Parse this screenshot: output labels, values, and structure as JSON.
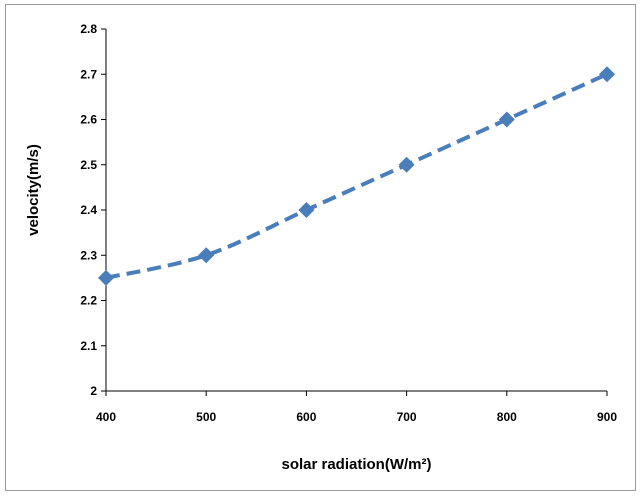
{
  "chart_data": {
    "type": "line",
    "title": "",
    "xlabel": "solar  radiation(W/m²)",
    "ylabel": "velocity(m/s)",
    "x": [
      400,
      500,
      600,
      700,
      800,
      900
    ],
    "series": [
      {
        "values": [
          2.25,
          2.3,
          2.4,
          2.5,
          2.6,
          2.7
        ]
      }
    ],
    "xlim": [
      400,
      900
    ],
    "ylim": [
      2,
      2.8
    ],
    "xticks": [
      "400",
      "500",
      "600",
      "700",
      "800",
      "900"
    ],
    "yticks": [
      "2",
      "2.1",
      "2.2",
      "2.3",
      "2.4",
      "2.5",
      "2.6",
      "2.7",
      "2.8"
    ],
    "line_style": "dashed",
    "marker": "diamond",
    "color": "#4a7ebb",
    "grid": false,
    "legend": "none"
  }
}
